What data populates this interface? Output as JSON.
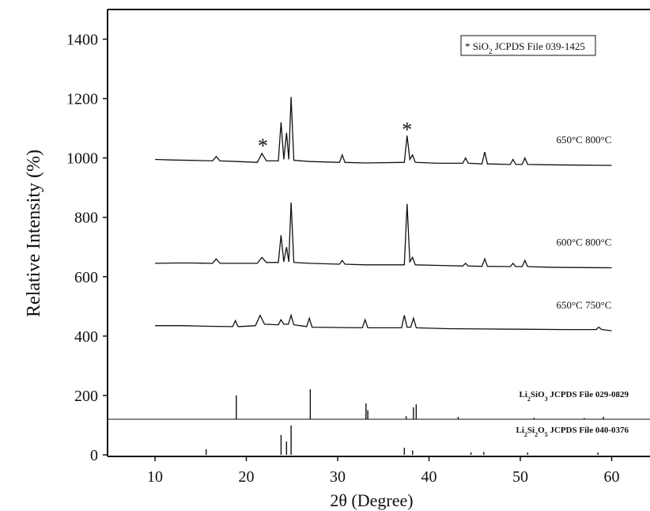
{
  "chart_data": {
    "type": "line",
    "y_label": "Relative Intensity (%)",
    "x_label": "2θ (Degree)",
    "xlim": [
      4.8,
      64.2
    ],
    "ylim": [
      0,
      1500
    ],
    "xticks": [
      10,
      20,
      30,
      40,
      50,
      60
    ],
    "yticks": [
      0,
      200,
      400,
      600,
      800,
      1000,
      1200,
      1400
    ],
    "color": "#111111",
    "series": [
      {
        "name": "650°C 800°C",
        "x": [
          10,
          12,
          14,
          16.3,
          16.7,
          17.1,
          19,
          21.2,
          21.7,
          22.2,
          23.5,
          23.8,
          24.1,
          24.4,
          24.65,
          24.9,
          25.2,
          27,
          30.2,
          30.5,
          30.8,
          33,
          37.3,
          37.6,
          37.9,
          38.2,
          38.5,
          41,
          43.7,
          44,
          44.3,
          45.8,
          46.1,
          46.4,
          48.9,
          49.2,
          49.5,
          50.2,
          50.5,
          50.8,
          53,
          56,
          60
        ],
        "values": [
          995,
          993,
          992,
          990,
          1005,
          990,
          988,
          985,
          1015,
          990,
          990,
          1120,
          995,
          1085,
          995,
          1205,
          992,
          988,
          985,
          1010,
          985,
          983,
          985,
          1075,
          995,
          1010,
          985,
          982,
          982,
          1000,
          982,
          980,
          1020,
          980,
          978,
          995,
          978,
          978,
          1000,
          978,
          977,
          976,
          975
        ]
      },
      {
        "name": "600°C 800°C",
        "x": [
          10,
          12,
          14,
          16.3,
          16.7,
          17.1,
          19,
          21.2,
          21.7,
          22.2,
          23.5,
          23.8,
          24.1,
          24.4,
          24.65,
          24.9,
          25.2,
          27,
          30.2,
          30.5,
          30.8,
          33,
          37.3,
          37.6,
          37.9,
          38.2,
          38.5,
          41,
          43.7,
          44,
          44.3,
          45.8,
          46.1,
          46.4,
          48.9,
          49.2,
          49.5,
          50.2,
          50.5,
          50.8,
          53,
          56,
          60
        ],
        "values": [
          645,
          646,
          646,
          645,
          660,
          645,
          645,
          645,
          665,
          648,
          648,
          740,
          650,
          700,
          650,
          850,
          648,
          645,
          642,
          655,
          642,
          640,
          640,
          845,
          650,
          665,
          640,
          638,
          636,
          645,
          636,
          635,
          660,
          635,
          634,
          645,
          634,
          634,
          655,
          634,
          632,
          631,
          630
        ]
      },
      {
        "name": "650°C 750°C",
        "x": [
          10,
          13,
          16,
          18.5,
          18.8,
          19.1,
          21,
          21.5,
          22,
          23.5,
          23.8,
          24.1,
          24.6,
          24.9,
          25.2,
          26.6,
          26.9,
          27.2,
          32.7,
          33,
          33.3,
          37,
          37.3,
          37.6,
          38,
          38.3,
          38.6,
          42,
          46,
          50,
          55,
          58.3,
          58.6,
          58.9,
          60
        ],
        "values": [
          435,
          435,
          433,
          432,
          452,
          432,
          435,
          470,
          440,
          438,
          455,
          440,
          440,
          470,
          438,
          432,
          460,
          430,
          428,
          455,
          428,
          428,
          470,
          430,
          430,
          460,
          428,
          425,
          424,
          423,
          422,
          422,
          430,
          422,
          418
        ]
      }
    ],
    "annotations": [
      {
        "text": "*",
        "x": 21.8,
        "y": 1050
      },
      {
        "text": "*",
        "x": 37.6,
        "y": 1105
      }
    ],
    "legend_text": [
      "* SiO",
      "2",
      " JCPDS File 039-1425"
    ],
    "references": [
      {
        "label": [
          "Li",
          "2",
          "SiO",
          "3",
          "  JCPDS File 029-0829"
        ],
        "baseline": 120,
        "positions": [
          18.9,
          27,
          33.1,
          33.3,
          37.5,
          38.3,
          38.6,
          43.2,
          51.5,
          57,
          59.1
        ],
        "tops": [
          200,
          221,
          173,
          150,
          130,
          160,
          170,
          128,
          125,
          124,
          128
        ]
      },
      {
        "label": [
          "Li",
          "2",
          "Si",
          "2",
          "O",
          "5",
          "  JCPDS File 040-0376"
        ],
        "baseline": 0,
        "positions": [
          15.6,
          23.8,
          24.4,
          24.9,
          37.3,
          38.2,
          44.6,
          46,
          50.8,
          58.5
        ],
        "tops": [
          19,
          67,
          45,
          99,
          24,
          15,
          8,
          10,
          8,
          8
        ]
      }
    ]
  }
}
